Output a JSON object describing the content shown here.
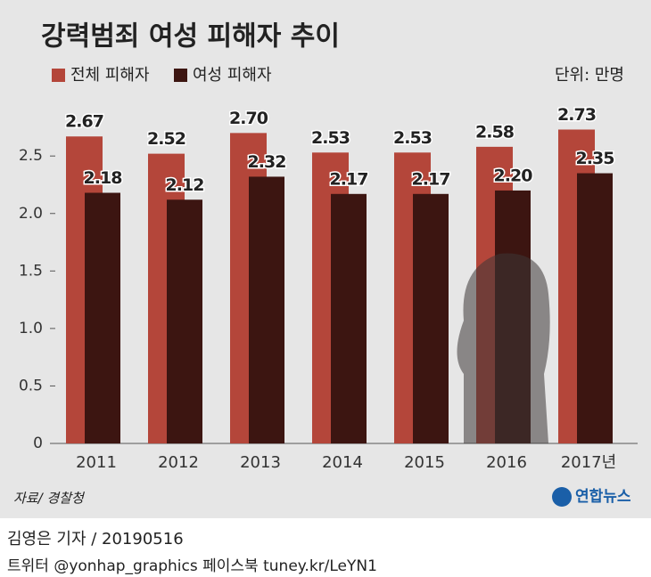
{
  "chart_data": {
    "type": "bar",
    "title": "강력범죄 여성 피해자 추이",
    "unit": "단위: 만명",
    "source": "자료/ 경찰청",
    "logo": "연합뉴스",
    "credit": "김영은 기자 / 20190516",
    "social": "트위터 @yonhap_graphics  페이스북 tuney.kr/LeYN1",
    "categories": [
      "2011",
      "2012",
      "2013",
      "2014",
      "2015",
      "2016",
      "2017년"
    ],
    "series": [
      {
        "name": "전체 피해자",
        "color": "#b4463a",
        "values": [
          2.67,
          2.52,
          2.7,
          2.53,
          2.53,
          2.58,
          2.73
        ],
        "value_labels": [
          "2.67",
          "2.52",
          "2.70",
          "2.53",
          "2.53",
          "2.58",
          "2.73"
        ]
      },
      {
        "name": "여성 피해자",
        "color": "#3c1511",
        "values": [
          2.18,
          2.12,
          2.32,
          2.17,
          2.17,
          2.2,
          2.35
        ],
        "value_labels": [
          "2.18",
          "2.12",
          "2.32",
          "2.17",
          "2.17",
          "2.20",
          "2.35"
        ]
      }
    ],
    "ylim": [
      0,
      2.85
    ],
    "yticks": [
      0,
      0.5,
      {
        "value": 1.0,
        "label": "1.0"
      },
      1.5,
      {
        "value": 2.0,
        "label": "2.0"
      },
      2.5
    ]
  }
}
